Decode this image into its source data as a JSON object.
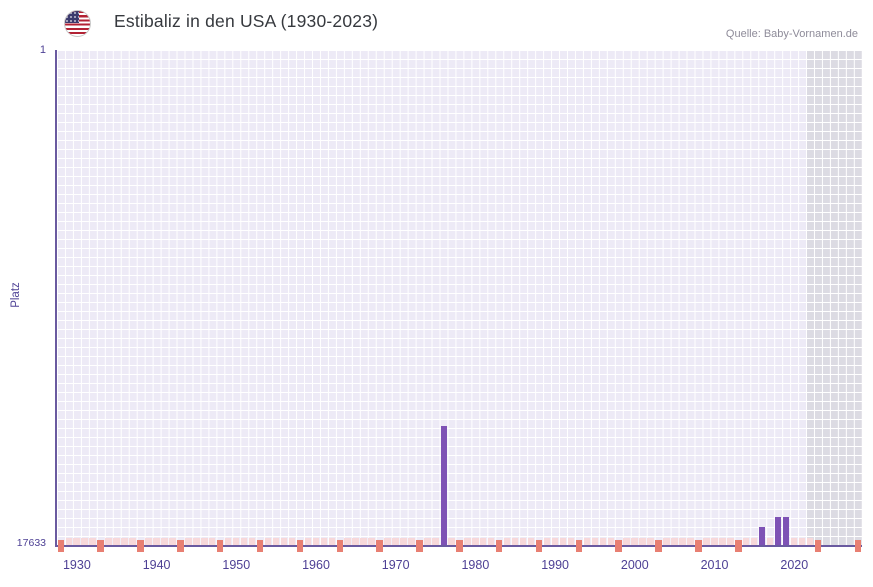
{
  "header": {
    "title": "Estibaliz in den USA (1930-2023)",
    "source": "Quelle: Baby-Vornamen.de",
    "flag_icon": "us-flag-icon"
  },
  "chart_data": {
    "type": "bar",
    "title": "Estibaliz in den USA (1930-2023)",
    "source": "Quelle: Baby-Vornamen.de",
    "xlabel": "",
    "ylabel": "Platz",
    "y_axis": {
      "min": 1,
      "max": 17633,
      "top_label": "1",
      "bottom_label": "17633",
      "inverted": true
    },
    "x_ticks": [
      1930,
      1940,
      1950,
      1960,
      1970,
      1980,
      1990,
      2000,
      2010,
      2020
    ],
    "x_range": [
      1928,
      2029
    ],
    "bars": [
      {
        "year": 1976,
        "rank": 13400
      },
      {
        "year": 2016,
        "rank": 17000
      },
      {
        "year": 2018,
        "rank": 16650
      },
      {
        "year": 2019,
        "rank": 16650
      }
    ],
    "no_data_markers": {
      "note": "small pink baseline markers for years without a ranking",
      "start": 1928,
      "end": 2023,
      "emphasis_start": 1928,
      "emphasis_end": 2028,
      "emphasis_interval": 5
    },
    "shaded_region_start_year": 2022,
    "grid_on": true,
    "legend": "none",
    "colors": {
      "bar": "#7e52b5",
      "plot_bg": "#edeaf6",
      "grid": "#ffffff",
      "future_band": "#dcdbe3",
      "axis": "#6a5aa0",
      "tick_label": "#4e4195",
      "no_data_marker": "#f7d8da",
      "no_data_marker_emphasis": "#e87f72",
      "title_color": "#36393e",
      "source_color": "#8e8b99"
    }
  }
}
